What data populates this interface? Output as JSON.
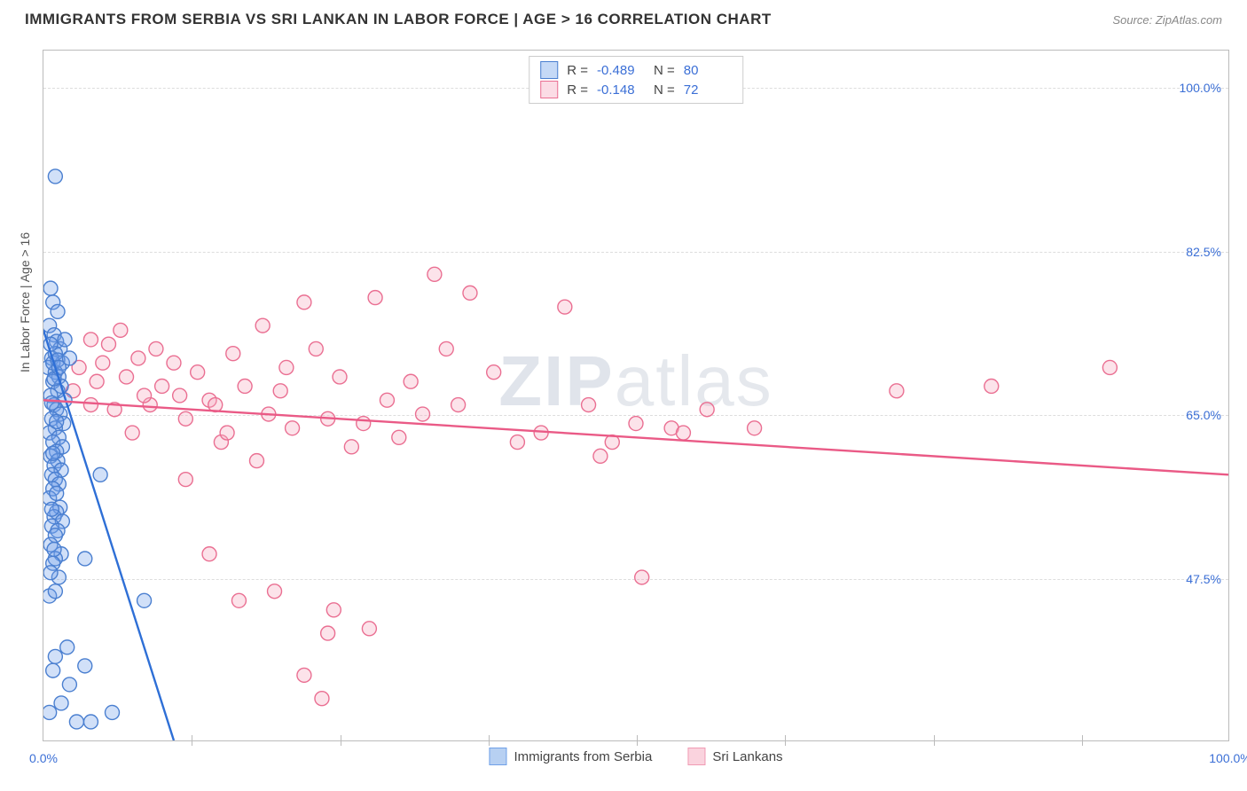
{
  "title": "IMMIGRANTS FROM SERBIA VS SRI LANKAN IN LABOR FORCE | AGE > 16 CORRELATION CHART",
  "source": "Source: ZipAtlas.com",
  "watermark": {
    "bold": "ZIP",
    "rest": "atlas"
  },
  "chart": {
    "type": "scatter-with-regression",
    "y_axis_label": "In Labor Force | Age > 16",
    "background_color": "#ffffff",
    "grid_color": "#dddddd",
    "border_color": "#bbbbbb",
    "axis_label_color": "#3b6fd6",
    "xlim": [
      0,
      100
    ],
    "ylim": [
      30,
      104
    ],
    "x_ticks": [
      0,
      100
    ],
    "x_tick_labels": [
      "0.0%",
      "100.0%"
    ],
    "x_minor_ticks": [
      12.5,
      25,
      37.5,
      50,
      62.5,
      75,
      87.5
    ],
    "y_ticks": [
      47.5,
      65.0,
      82.5,
      100.0
    ],
    "y_tick_labels": [
      "47.5%",
      "65.0%",
      "82.5%",
      "100.0%"
    ],
    "marker_radius": 8,
    "marker_fill_opacity": 0.32,
    "line_width": 2.4,
    "series": [
      {
        "name": "Immigrants from Serbia",
        "color": "#6fa0e8",
        "stroke": "#4a7fd0",
        "line_color": "#2e6fd6",
        "R": "-0.489",
        "N": "80",
        "regression": {
          "x1": 0,
          "y1": 74,
          "x2": 11,
          "y2": 30
        },
        "points": [
          [
            1.0,
            90.5
          ],
          [
            0.6,
            78.5
          ],
          [
            0.8,
            77.0
          ],
          [
            1.2,
            76.0
          ],
          [
            0.5,
            74.5
          ],
          [
            0.9,
            73.5
          ],
          [
            1.1,
            72.8
          ],
          [
            1.4,
            72.0
          ],
          [
            0.7,
            71.0
          ],
          [
            1.6,
            70.5
          ],
          [
            0.4,
            70.0
          ],
          [
            1.0,
            69.5
          ],
          [
            1.3,
            69.0
          ],
          [
            0.8,
            68.5
          ],
          [
            1.5,
            68.0
          ],
          [
            1.2,
            67.5
          ],
          [
            0.6,
            67.0
          ],
          [
            1.8,
            66.5
          ],
          [
            0.9,
            66.0
          ],
          [
            1.1,
            65.5
          ],
          [
            1.4,
            65.0
          ],
          [
            0.7,
            64.5
          ],
          [
            1.7,
            64.0
          ],
          [
            1.0,
            63.5
          ],
          [
            0.5,
            63.0
          ],
          [
            1.3,
            62.5
          ],
          [
            0.8,
            62.0
          ],
          [
            1.6,
            61.5
          ],
          [
            1.1,
            61.0
          ],
          [
            0.6,
            60.5
          ],
          [
            1.2,
            60.0
          ],
          [
            0.9,
            59.5
          ],
          [
            1.5,
            59.0
          ],
          [
            0.7,
            58.5
          ],
          [
            1.0,
            58.0
          ],
          [
            1.3,
            57.5
          ],
          [
            0.8,
            57.0
          ],
          [
            0.5,
            56.0
          ],
          [
            1.4,
            55.0
          ],
          [
            1.1,
            54.5
          ],
          [
            0.9,
            54.0
          ],
          [
            1.6,
            53.5
          ],
          [
            0.7,
            53.0
          ],
          [
            1.2,
            52.5
          ],
          [
            1.0,
            52.0
          ],
          [
            0.6,
            51.0
          ],
          [
            1.5,
            50.0
          ],
          [
            4.8,
            58.5
          ],
          [
            1.0,
            49.5
          ],
          [
            0.8,
            49.0
          ],
          [
            1.3,
            47.5
          ],
          [
            3.5,
            49.5
          ],
          [
            0.5,
            45.5
          ],
          [
            2.0,
            40.0
          ],
          [
            8.5,
            45.0
          ],
          [
            1.0,
            39.0
          ],
          [
            3.5,
            38.0
          ],
          [
            0.8,
            37.5
          ],
          [
            2.2,
            36.0
          ],
          [
            0.5,
            33.0
          ],
          [
            5.8,
            33.0
          ],
          [
            1.5,
            34.0
          ],
          [
            2.8,
            32.0
          ],
          [
            4.0,
            32.0
          ],
          [
            0.8,
            70.5
          ],
          [
            1.0,
            71.5
          ],
          [
            0.6,
            72.5
          ],
          [
            1.2,
            70.8
          ],
          [
            0.9,
            68.8
          ],
          [
            1.3,
            70.0
          ],
          [
            0.7,
            66.2
          ],
          [
            1.1,
            64.2
          ],
          [
            0.8,
            60.8
          ],
          [
            0.7,
            54.8
          ],
          [
            1.1,
            56.5
          ],
          [
            0.9,
            50.5
          ],
          [
            0.6,
            48.0
          ],
          [
            1.0,
            46.0
          ],
          [
            1.8,
            73.0
          ],
          [
            2.2,
            71.0
          ]
        ]
      },
      {
        "name": "Sri Lankans",
        "color": "#f5a8bd",
        "stroke": "#ea6f92",
        "line_color": "#ea5a86",
        "R": "-0.148",
        "N": "72",
        "regression": {
          "x1": 0,
          "y1": 66.5,
          "x2": 100,
          "y2": 58.5
        },
        "points": [
          [
            3.0,
            70.0
          ],
          [
            4.5,
            68.5
          ],
          [
            5.5,
            72.5
          ],
          [
            6.0,
            65.5
          ],
          [
            7.0,
            69.0
          ],
          [
            8.0,
            71.0
          ],
          [
            9.0,
            66.0
          ],
          [
            10.0,
            68.0
          ],
          [
            11.0,
            70.5
          ],
          [
            12.0,
            64.5
          ],
          [
            13.0,
            69.5
          ],
          [
            14.0,
            66.5
          ],
          [
            15.0,
            62.0
          ],
          [
            16.0,
            71.5
          ],
          [
            17.0,
            68.0
          ],
          [
            18.0,
            60.0
          ],
          [
            19.0,
            65.0
          ],
          [
            20.0,
            67.5
          ],
          [
            18.5,
            74.5
          ],
          [
            21.0,
            63.5
          ],
          [
            22.0,
            77.0
          ],
          [
            24.0,
            64.5
          ],
          [
            25.0,
            69.0
          ],
          [
            26.0,
            61.5
          ],
          [
            27.0,
            64.0
          ],
          [
            28.0,
            77.5
          ],
          [
            29.0,
            66.5
          ],
          [
            30.0,
            62.5
          ],
          [
            31.0,
            68.5
          ],
          [
            33.0,
            80.0
          ],
          [
            36.0,
            78.0
          ],
          [
            34.0,
            72.0
          ],
          [
            40.0,
            62.0
          ],
          [
            38.0,
            69.5
          ],
          [
            42.0,
            63.0
          ],
          [
            46.0,
            66.0
          ],
          [
            44.0,
            76.5
          ],
          [
            47.0,
            60.5
          ],
          [
            50.0,
            64.0
          ],
          [
            53.0,
            63.5
          ],
          [
            56.0,
            65.5
          ],
          [
            54.0,
            63.0
          ],
          [
            60.0,
            63.5
          ],
          [
            12.0,
            58.0
          ],
          [
            14.5,
            66.0
          ],
          [
            4.0,
            73.0
          ],
          [
            6.5,
            74.0
          ],
          [
            8.5,
            67.0
          ],
          [
            23.0,
            72.0
          ],
          [
            16.5,
            45.0
          ],
          [
            19.5,
            46.0
          ],
          [
            24.5,
            44.0
          ],
          [
            14.0,
            50.0
          ],
          [
            22.0,
            37.0
          ],
          [
            23.5,
            34.5
          ],
          [
            24.0,
            41.5
          ],
          [
            27.5,
            42.0
          ],
          [
            50.5,
            47.5
          ],
          [
            48.0,
            62.0
          ],
          [
            80.0,
            68.0
          ],
          [
            72.0,
            67.5
          ],
          [
            90.0,
            70.0
          ],
          [
            4.0,
            66.0
          ],
          [
            5.0,
            70.5
          ],
          [
            7.5,
            63.0
          ],
          [
            9.5,
            72.0
          ],
          [
            11.5,
            67.0
          ],
          [
            15.5,
            63.0
          ],
          [
            20.5,
            70.0
          ],
          [
            32.0,
            65.0
          ],
          [
            35.0,
            66.0
          ],
          [
            2.5,
            67.5
          ]
        ]
      }
    ],
    "bottom_legend": [
      {
        "label": "Immigrants from Serbia",
        "fill": "#b7d0f2",
        "stroke": "#6fa0e8"
      },
      {
        "label": "Sri Lankans",
        "fill": "#fad3de",
        "stroke": "#f09bb4"
      }
    ]
  }
}
